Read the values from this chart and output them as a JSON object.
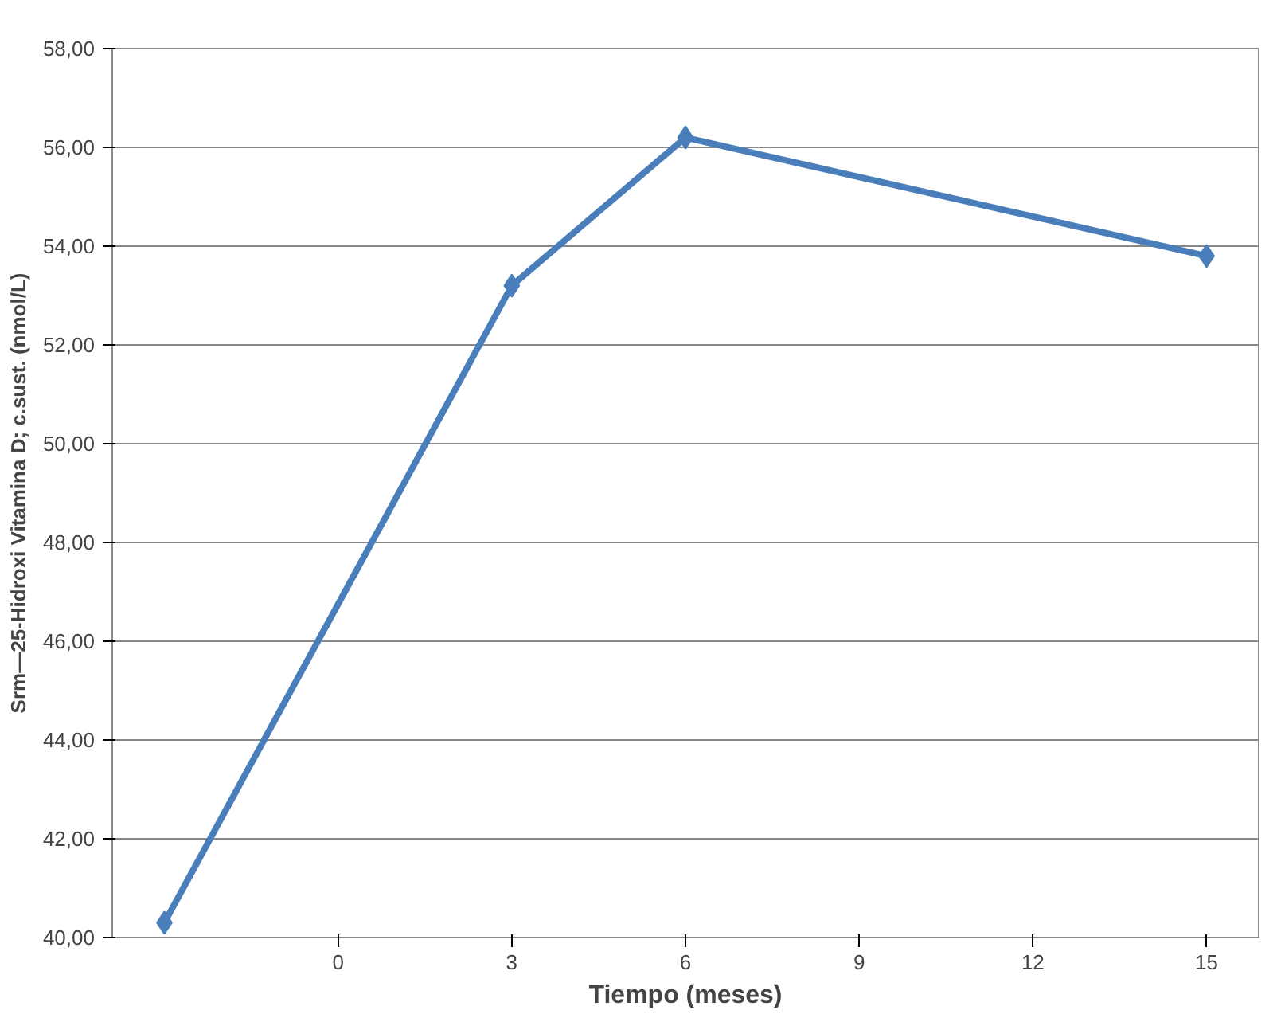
{
  "chart_data": {
    "type": "line",
    "xlabel": "Tiempo (meses)",
    "ylabel": "Srm—25-Hidroxi Vitamina D; c.sust. (nmol/L)",
    "x": [
      -3,
      3,
      6,
      15
    ],
    "series": [
      {
        "color": "#4a7ebb",
        "values": [
          40.3,
          53.2,
          56.2,
          53.8
        ]
      }
    ],
    "xlim": [
      -3.9,
      15.9
    ],
    "xticks": [
      0,
      3,
      6,
      9,
      12,
      15
    ],
    "ylim": [
      40,
      58
    ],
    "yticks": [
      {
        "value": 40,
        "label": "40,00"
      },
      {
        "value": 42,
        "label": "42,00"
      },
      {
        "value": 44,
        "label": "44,00"
      },
      {
        "value": 46,
        "label": "46,00"
      },
      {
        "value": 48,
        "label": "48,00"
      },
      {
        "value": 50,
        "label": "50,00"
      },
      {
        "value": 52,
        "label": "52,00"
      },
      {
        "value": 54,
        "label": "54,00"
      },
      {
        "value": 56,
        "label": "56,00"
      },
      {
        "value": 58,
        "label": "58,00"
      }
    ],
    "grid": "y",
    "marker": "diamond",
    "line_style": "solid"
  }
}
